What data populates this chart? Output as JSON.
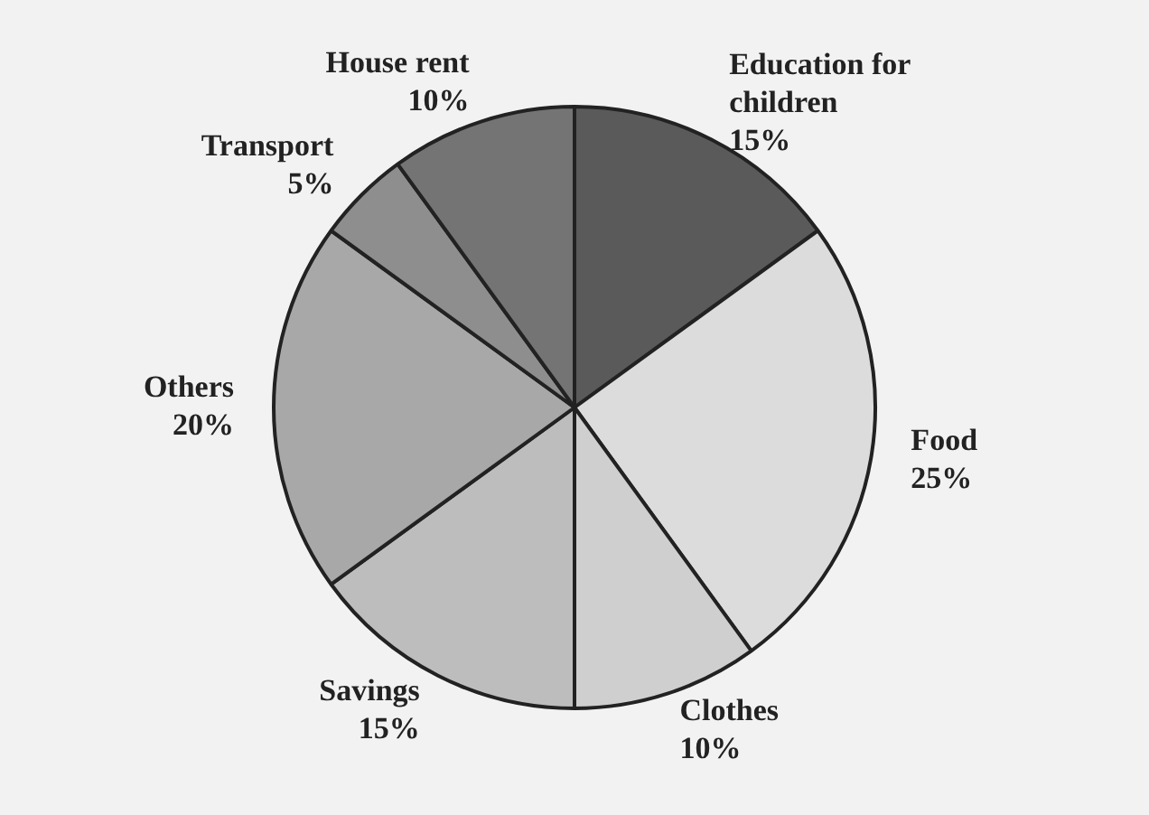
{
  "chart_data": {
    "type": "pie",
    "categories": [
      "Education for children",
      "Food",
      "Clothes",
      "Savings",
      "Others",
      "Transport",
      "House rent"
    ],
    "values": [
      15,
      25,
      10,
      15,
      20,
      5,
      10
    ],
    "value_labels": [
      "15%",
      "25%",
      "10%",
      "15%",
      "20%",
      "5%",
      "10%"
    ],
    "colors": [
      "#5a5a5a",
      "#dcdcdc",
      "#cfcfcf",
      "#bdbdbd",
      "#a8a8a8",
      "#8e8e8e",
      "#747474"
    ]
  }
}
